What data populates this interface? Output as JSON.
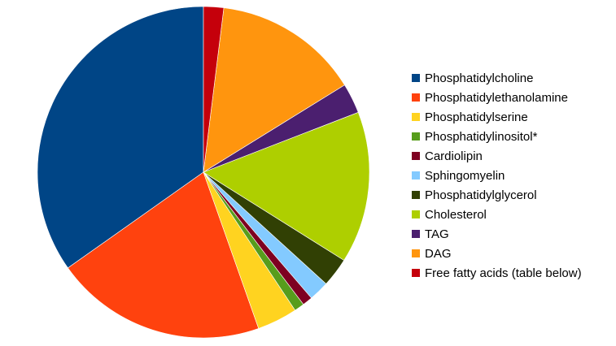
{
  "chart_data": {
    "type": "pie",
    "title": "",
    "legend_position": "right",
    "slices": [
      {
        "label": "Phosphatidylcholine",
        "value": 35.5,
        "color": "#004586"
      },
      {
        "label": "Phosphatidylethanolamine",
        "value": 21.0,
        "color": "#ff420e"
      },
      {
        "label": "Phosphatidylserine",
        "value": 4.0,
        "color": "#ffd320"
      },
      {
        "label": "Phosphatidylinositol*",
        "value": 1.0,
        "color": "#579d1c"
      },
      {
        "label": "Cardiolipin",
        "value": 1.0,
        "color": "#7e0021"
      },
      {
        "label": "Sphingomyelin",
        "value": 2.0,
        "color": "#83caff"
      },
      {
        "label": "Phosphatidylglycerol",
        "value": 2.9,
        "color": "#314004"
      },
      {
        "label": "Cholesterol",
        "value": 15.1,
        "color": "#aecf00"
      },
      {
        "label": "TAG",
        "value": 3.0,
        "color": "#4b1f6f"
      },
      {
        "label": "DAG",
        "value": 14.5,
        "color": "#ff950e"
      },
      {
        "label": "Free fatty acids (table below)",
        "value": 2.0,
        "color": "#c5000b"
      }
    ]
  }
}
